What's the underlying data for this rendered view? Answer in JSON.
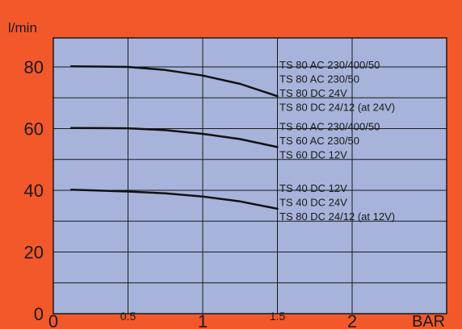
{
  "colors": {
    "background": "#f3582a",
    "plot_area": "#a7b3da",
    "grid": "#1a1a1a",
    "curve": "#111111"
  },
  "chart_data": {
    "type": "line",
    "title": "",
    "xlabel": "BAR",
    "ylabel": "l/min",
    "xlim": [
      0,
      2.5
    ],
    "ylim": [
      0,
      90
    ],
    "grid": true,
    "x_ticks": [
      0,
      0.5,
      1,
      1.5,
      2
    ],
    "x_tick_labels": [
      "0",
      "0.5",
      "1",
      "1.5",
      "2"
    ],
    "y_ticks": [
      0,
      20,
      40,
      60,
      80
    ],
    "y_tick_labels": [
      "0",
      "20",
      "40",
      "60",
      "80"
    ],
    "series": [
      {
        "x": [
          0.12,
          0.5,
          0.75,
          1.0,
          1.25,
          1.5
        ],
        "y": [
          80.2,
          80.0,
          79.0,
          77.2,
          74.5,
          70.5
        ],
        "labels": [
          "TS 80 AC 230/400/50",
          "TS 80 AC 230/50",
          "TS 80 DC 24V",
          "TS 80 DC 24/12 (at 24V)"
        ]
      },
      {
        "x": [
          0.12,
          0.5,
          0.75,
          1.0,
          1.25,
          1.5
        ],
        "y": [
          60.2,
          60.1,
          59.5,
          58.3,
          56.6,
          54.0
        ],
        "labels": [
          "TS 60 AC 230/400/50",
          "TS 60 AC 230/50",
          "TS 60 DC 12V"
        ]
      },
      {
        "x": [
          0.12,
          0.5,
          0.75,
          1.0,
          1.25,
          1.5
        ],
        "y": [
          40.2,
          39.6,
          39.0,
          38.0,
          36.4,
          34.0
        ],
        "labels": [
          "TS 40 DC 12V",
          "TS 40 DC 24V",
          "TS 80 DC 24/12 (at 12V)"
        ]
      }
    ]
  }
}
